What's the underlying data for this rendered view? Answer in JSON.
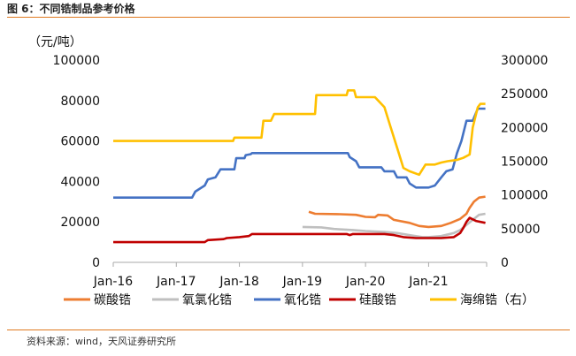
{
  "header": {
    "title": "图 6：不同锆制品参考价格"
  },
  "footer": {
    "source": "资料来源：wind，天风证券研究所"
  },
  "chart_data": {
    "type": "line",
    "y_unit_label": "（元/吨）",
    "x_ticks": [
      "Jan-16",
      "Jan-17",
      "Jan-18",
      "Jan-19",
      "Jan-20",
      "Jan-21"
    ],
    "x_range": [
      2016.0,
      2021.92
    ],
    "ylim_left": [
      0,
      100000
    ],
    "ylim_right": [
      0,
      300000
    ],
    "yticks_left": [
      "0",
      "20000",
      "40000",
      "60000",
      "80000",
      "100000"
    ],
    "yticks_right": [
      "0",
      "50000",
      "100000",
      "150000",
      "200000",
      "250000",
      "300000"
    ],
    "grid": false,
    "legend_position": "bottom",
    "series": [
      {
        "name": "碳酸锆",
        "color": "#ED7D31",
        "axis": "left",
        "points": [
          [
            2019.1,
            25000
          ],
          [
            2019.2,
            24000
          ],
          [
            2019.6,
            23800
          ],
          [
            2019.85,
            23500
          ],
          [
            2020.0,
            22500
          ],
          [
            2020.15,
            22300
          ],
          [
            2020.2,
            23500
          ],
          [
            2020.35,
            23200
          ],
          [
            2020.45,
            21000
          ],
          [
            2020.7,
            19500
          ],
          [
            2020.85,
            18000
          ],
          [
            2021.0,
            17500
          ],
          [
            2021.2,
            18000
          ],
          [
            2021.35,
            19500
          ],
          [
            2021.5,
            21500
          ],
          [
            2021.6,
            24000
          ],
          [
            2021.65,
            27000
          ],
          [
            2021.72,
            30000
          ],
          [
            2021.8,
            32000
          ],
          [
            2021.9,
            32500
          ]
        ]
      },
      {
        "name": "氧氯化锆",
        "color": "#BFBFBF",
        "axis": "left",
        "points": [
          [
            2019.0,
            17500
          ],
          [
            2019.3,
            17300
          ],
          [
            2019.5,
            16500
          ],
          [
            2019.8,
            16000
          ],
          [
            2020.0,
            15500
          ],
          [
            2020.3,
            15000
          ],
          [
            2020.5,
            14500
          ],
          [
            2020.7,
            13500
          ],
          [
            2020.9,
            12500
          ],
          [
            2021.0,
            12500
          ],
          [
            2021.2,
            13000
          ],
          [
            2021.4,
            14500
          ],
          [
            2021.5,
            16000
          ],
          [
            2021.6,
            18500
          ],
          [
            2021.7,
            21000
          ],
          [
            2021.8,
            23500
          ],
          [
            2021.9,
            24000
          ]
        ]
      },
      {
        "name": "氧化锆",
        "color": "#4472C4",
        "axis": "left",
        "points": [
          [
            2016.0,
            32000
          ],
          [
            2016.6,
            32000
          ],
          [
            2017.25,
            32000
          ],
          [
            2017.3,
            35000
          ],
          [
            2017.45,
            38000
          ],
          [
            2017.5,
            41000
          ],
          [
            2017.62,
            42000
          ],
          [
            2017.7,
            46000
          ],
          [
            2017.92,
            46000
          ],
          [
            2017.95,
            51500
          ],
          [
            2018.08,
            51500
          ],
          [
            2018.1,
            53000
          ],
          [
            2018.18,
            53500
          ],
          [
            2018.2,
            54000
          ],
          [
            2018.6,
            54000
          ],
          [
            2019.0,
            54000
          ],
          [
            2019.4,
            54000
          ],
          [
            2019.72,
            54000
          ],
          [
            2019.75,
            52000
          ],
          [
            2019.85,
            50000
          ],
          [
            2019.9,
            47000
          ],
          [
            2020.0,
            47000
          ],
          [
            2020.25,
            47000
          ],
          [
            2020.3,
            45000
          ],
          [
            2020.45,
            45000
          ],
          [
            2020.5,
            42000
          ],
          [
            2020.65,
            42000
          ],
          [
            2020.7,
            39000
          ],
          [
            2020.8,
            37000
          ],
          [
            2021.0,
            37000
          ],
          [
            2021.1,
            38000
          ],
          [
            2021.2,
            42000
          ],
          [
            2021.28,
            45000
          ],
          [
            2021.38,
            46000
          ],
          [
            2021.45,
            54000
          ],
          [
            2021.52,
            60000
          ],
          [
            2021.6,
            70000
          ],
          [
            2021.7,
            70000
          ],
          [
            2021.78,
            76000
          ],
          [
            2021.9,
            76000
          ]
        ]
      },
      {
        "name": "硅酸锆",
        "color": "#C00000",
        "axis": "left",
        "points": [
          [
            2016.0,
            10000
          ],
          [
            2016.5,
            10000
          ],
          [
            2017.0,
            10000
          ],
          [
            2017.45,
            10000
          ],
          [
            2017.5,
            11000
          ],
          [
            2017.75,
            11500
          ],
          [
            2017.8,
            12000
          ],
          [
            2018.0,
            12500
          ],
          [
            2018.15,
            13000
          ],
          [
            2018.2,
            14000
          ],
          [
            2018.5,
            14000
          ],
          [
            2019.0,
            14000
          ],
          [
            2019.5,
            14000
          ],
          [
            2019.7,
            14000
          ],
          [
            2019.75,
            13500
          ],
          [
            2019.8,
            14000
          ],
          [
            2020.0,
            14000
          ],
          [
            2020.3,
            14000
          ],
          [
            2020.45,
            13500
          ],
          [
            2020.6,
            12500
          ],
          [
            2020.8,
            12000
          ],
          [
            2021.0,
            12000
          ],
          [
            2021.2,
            12000
          ],
          [
            2021.4,
            12500
          ],
          [
            2021.5,
            14500
          ],
          [
            2021.55,
            17000
          ],
          [
            2021.6,
            20000
          ],
          [
            2021.65,
            22000
          ],
          [
            2021.75,
            20500
          ],
          [
            2021.9,
            19500
          ]
        ]
      },
      {
        "name": "海绵锆（右）",
        "color": "#FFC000",
        "axis": "right",
        "points": [
          [
            2016.0,
            180000
          ],
          [
            2016.5,
            180000
          ],
          [
            2017.0,
            180000
          ],
          [
            2017.5,
            180000
          ],
          [
            2017.9,
            180000
          ],
          [
            2017.92,
            185000
          ],
          [
            2018.2,
            185000
          ],
          [
            2018.25,
            185000
          ],
          [
            2018.35,
            185000
          ],
          [
            2018.38,
            210000
          ],
          [
            2018.5,
            210000
          ],
          [
            2018.55,
            220000
          ],
          [
            2018.65,
            220000
          ],
          [
            2018.7,
            220000
          ],
          [
            2019.0,
            220000
          ],
          [
            2019.2,
            220000
          ],
          [
            2019.22,
            248000
          ],
          [
            2019.4,
            248000
          ],
          [
            2019.6,
            248000
          ],
          [
            2019.7,
            248000
          ],
          [
            2019.72,
            255000
          ],
          [
            2019.82,
            255000
          ],
          [
            2019.85,
            245000
          ],
          [
            2020.0,
            245000
          ],
          [
            2020.15,
            245000
          ],
          [
            2020.2,
            240000
          ],
          [
            2020.3,
            230000
          ],
          [
            2020.4,
            200000
          ],
          [
            2020.5,
            170000
          ],
          [
            2020.6,
            140000
          ],
          [
            2020.7,
            135000
          ],
          [
            2020.85,
            130000
          ],
          [
            2020.95,
            145000
          ],
          [
            2021.0,
            145000
          ],
          [
            2021.1,
            145000
          ],
          [
            2021.2,
            148000
          ],
          [
            2021.3,
            150000
          ],
          [
            2021.45,
            152000
          ],
          [
            2021.55,
            155000
          ],
          [
            2021.65,
            160000
          ],
          [
            2021.7,
            200000
          ],
          [
            2021.78,
            230000
          ],
          [
            2021.82,
            235000
          ],
          [
            2021.9,
            235000
          ]
        ]
      }
    ]
  }
}
